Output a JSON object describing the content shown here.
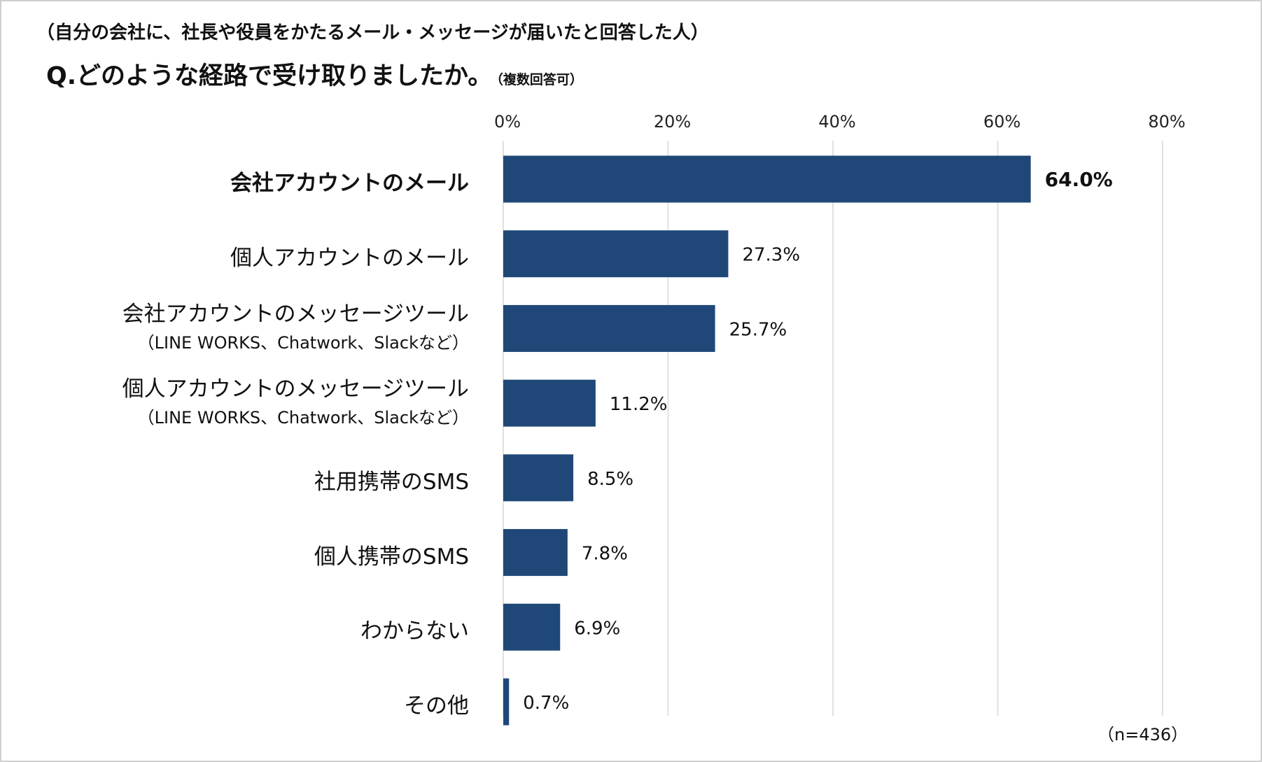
{
  "header": {
    "pretext": "（自分の会社に、社長や役員をかたるメール・メッセージが届いたと回答した人）",
    "question": "Q.どのような経路で受け取りましたか。",
    "note": "（複数回答可）"
  },
  "sample_size": "（n=436）",
  "chart_data": {
    "type": "bar",
    "orientation": "horizontal",
    "categories": [
      {
        "label": "会社アカウントのメール",
        "sub": "",
        "bold": true
      },
      {
        "label": "個人アカウントのメール",
        "sub": ""
      },
      {
        "label": "会社アカウントのメッセージツール",
        "sub": "（LINE WORKS、Chatwork、Slackなど）"
      },
      {
        "label": "個人アカウントのメッセージツール",
        "sub": "（LINE WORKS、Chatwork、Slackなど）"
      },
      {
        "label": "社用携帯のSMS",
        "sub": ""
      },
      {
        "label": "個人携帯のSMS",
        "sub": ""
      },
      {
        "label": "わからない",
        "sub": ""
      },
      {
        "label": "その他",
        "sub": ""
      }
    ],
    "values": [
      64.0,
      27.3,
      25.7,
      11.2,
      8.5,
      7.8,
      6.9,
      0.7
    ],
    "value_labels": [
      "64.0%",
      "27.3%",
      "25.7%",
      "11.2%",
      "8.5%",
      "7.8%",
      "6.9%",
      "0.7%"
    ],
    "xlim": [
      0,
      80
    ],
    "ticks": [
      0,
      20,
      40,
      60,
      80
    ],
    "tick_labels": [
      "0%",
      "20%",
      "40%",
      "60%",
      "80%"
    ],
    "axis_position": "top",
    "grid": true,
    "bar_color": "#1f4879",
    "grid_color": "#e0e0e0"
  }
}
